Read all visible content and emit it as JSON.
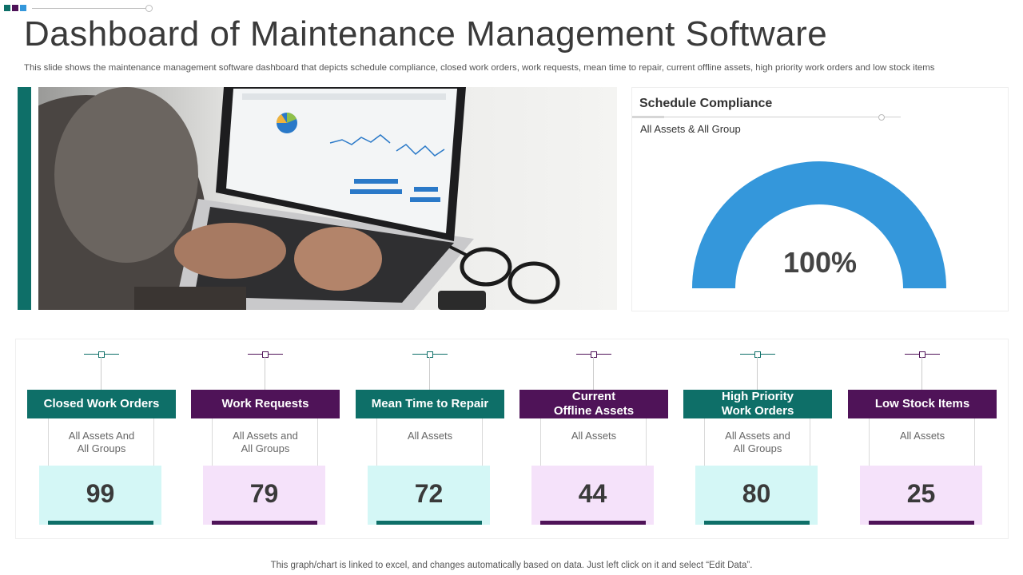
{
  "colors": {
    "teal": "#0e6f68",
    "purple": "#4f1358",
    "gauge_blue": "#3497db",
    "teal_light": "#d4f7f6",
    "purple_light": "#f5e2fa",
    "deco": [
      "#0e6f68",
      "#4f1358",
      "#3497db"
    ]
  },
  "header": {
    "title": "Dashboard of Maintenance Management Software",
    "subtitle": "This slide shows the maintenance management software dashboard that depicts schedule compliance, closed work orders, work requests, mean time to repair, current offline assets, high priority work orders and low stock items"
  },
  "schedule_compliance": {
    "title": "Schedule Compliance",
    "scope": "All Assets & All Group",
    "value_label": "100%",
    "fraction": 1.0
  },
  "kpis": [
    {
      "title": "Closed Work Orders",
      "scope": "All Assets And\nAll Groups",
      "value": "99",
      "theme": "teal"
    },
    {
      "title": "Work Requests",
      "scope": "All Assets and\nAll Groups",
      "value": "79",
      "theme": "purple"
    },
    {
      "title": "Mean Time to Repair",
      "scope": "All Assets",
      "value": "72",
      "theme": "teal"
    },
    {
      "title": "Current\nOffline Assets",
      "scope": "All Assets",
      "value": "44",
      "theme": "purple"
    },
    {
      "title": "High Priority\nWork Orders",
      "scope": "All Assets and\nAll Groups",
      "value": "80",
      "theme": "teal"
    },
    {
      "title": "Low Stock Items",
      "scope": "All Assets",
      "value": "25",
      "theme": "purple"
    }
  ],
  "footer": {
    "note": "This graph/chart is linked to excel,  and changes automatically based on data. Just left click on it and select “Edit Data”."
  }
}
